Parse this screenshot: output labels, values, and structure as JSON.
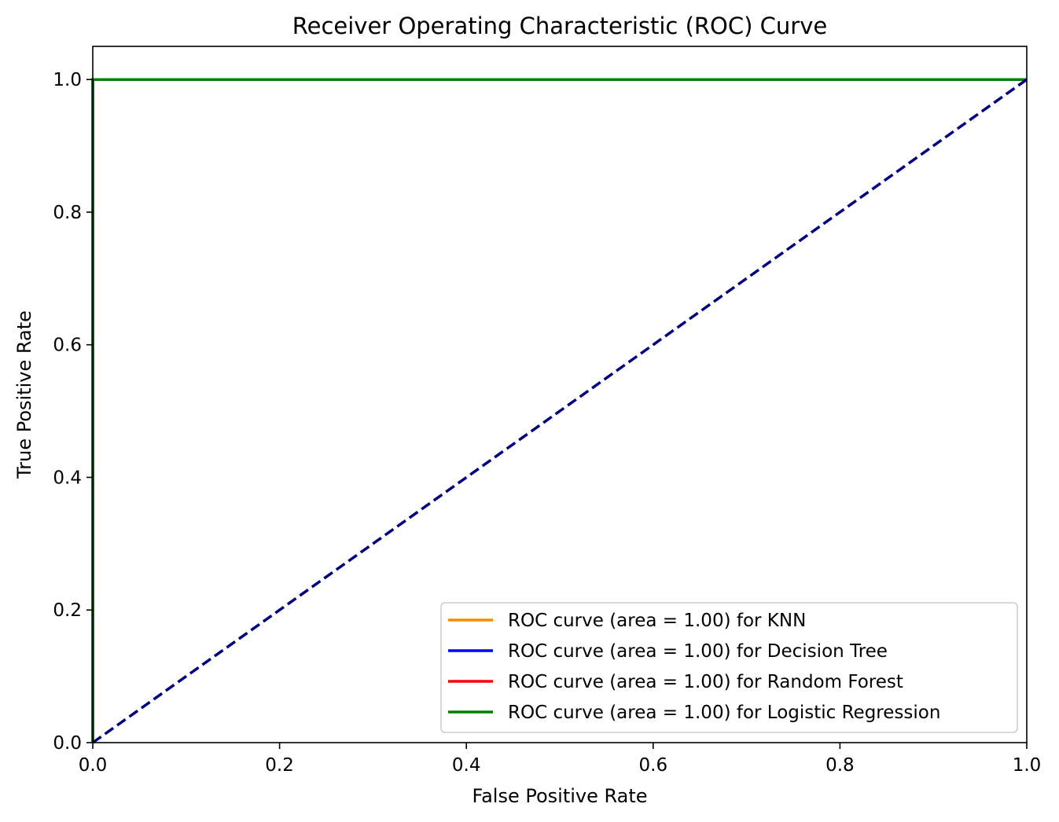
{
  "chart_data": {
    "type": "line",
    "title": "Receiver Operating Characteristic (ROC) Curve",
    "xlabel": "False Positive Rate",
    "ylabel": "True Positive Rate",
    "xlim": [
      0.0,
      1.0
    ],
    "ylim": [
      0.0,
      1.05
    ],
    "x_ticks": [
      "0.0",
      "0.2",
      "0.4",
      "0.6",
      "0.8",
      "1.0"
    ],
    "y_ticks": [
      "0.0",
      "0.2",
      "0.4",
      "0.6",
      "0.8",
      "1.0"
    ],
    "grid": false,
    "legend_position": "lower right",
    "series": [
      {
        "name": "ROC curve (area = 1.00) for KNN",
        "color": "#ff8c00",
        "x": [
          0.0,
          0.0,
          1.0
        ],
        "y": [
          0.0,
          1.0,
          1.0
        ]
      },
      {
        "name": "ROC curve (area = 1.00) for Decision Tree",
        "color": "#0000ff",
        "x": [
          0.0,
          0.0,
          1.0
        ],
        "y": [
          0.0,
          1.0,
          1.0
        ]
      },
      {
        "name": "ROC curve (area = 1.00) for Random Forest",
        "color": "#ff0000",
        "x": [
          0.0,
          0.0,
          1.0
        ],
        "y": [
          0.0,
          1.0,
          1.0
        ]
      },
      {
        "name": "ROC curve (area = 1.00) for Logistic Regression",
        "color": "#008000",
        "x": [
          0.0,
          0.0,
          1.0
        ],
        "y": [
          0.0,
          1.0,
          1.0
        ]
      }
    ],
    "reference_line": {
      "color": "#000080",
      "style": "dashed",
      "x": [
        0.0,
        1.0
      ],
      "y": [
        0.0,
        1.0
      ]
    }
  }
}
